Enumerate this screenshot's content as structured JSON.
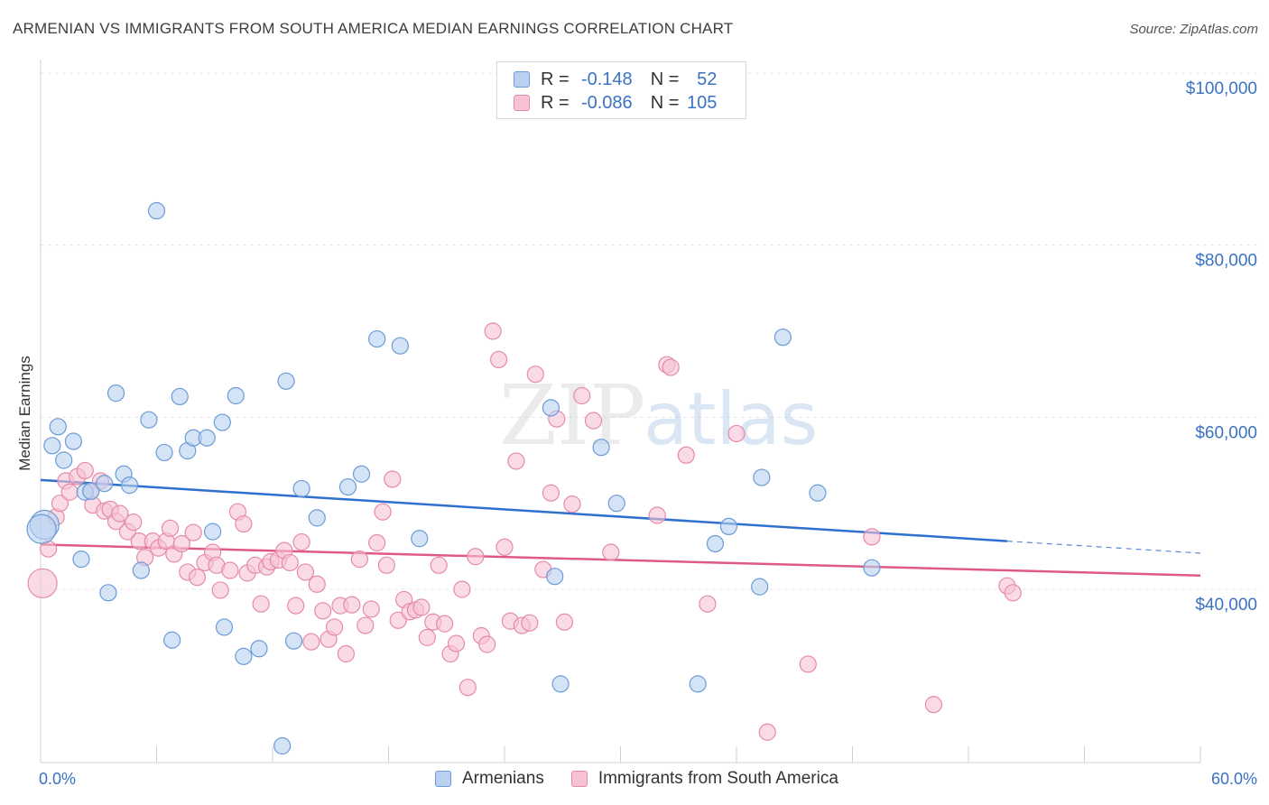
{
  "header": {
    "title": "ARMENIAN VS IMMIGRANTS FROM SOUTH AMERICA MEDIAN EARNINGS CORRELATION CHART",
    "source": "Source: ZipAtlas.com"
  },
  "watermark": {
    "zip": "ZIP",
    "atlas": "atlas"
  },
  "legend_top": {
    "r_label": "R =",
    "n_label": "N =",
    "rows": [
      {
        "r": "-0.148",
        "n": "52"
      },
      {
        "r": "-0.086",
        "n": "105"
      }
    ]
  },
  "legend_bottom": [
    {
      "label": "Armenians"
    },
    {
      "label": "Immigrants from South America"
    }
  ],
  "colors": {
    "blue_fill": "#b9d0f0",
    "blue_stroke": "#6a9bd8",
    "blue_line": "#2f6fce",
    "pink_fill": "#f7c3d3",
    "pink_stroke": "#e58aa9",
    "pink_line": "#e0588a",
    "tick_text": "#3a72c4"
  },
  "chart_data": {
    "type": "scatter",
    "title": "ARMENIAN VS IMMIGRANTS FROM SOUTH AMERICA MEDIAN EARNINGS CORRELATION CHART",
    "ylabel": "Median Earnings",
    "xlim": [
      0,
      60
    ],
    "ylim": [
      20000,
      105000
    ],
    "x_tick_labels": [
      "0.0%",
      "60.0%"
    ],
    "y_ticks": [
      40000,
      60000,
      80000,
      100000
    ],
    "y_tick_labels": [
      "$40,000",
      "$60,000",
      "$80,000",
      "$100,000"
    ],
    "grid": true,
    "legend_position": "top-center",
    "series": [
      {
        "name": "Armenians",
        "r": -0.148,
        "n": 52,
        "trend": {
          "x0": 0,
          "y0": 52700,
          "x1": 50,
          "y1": 45600,
          "dashed_to_x": 60,
          "dashed_to_y": 44200
        },
        "points": [
          [
            0.2,
            47500
          ],
          [
            0.6,
            56700
          ],
          [
            0.9,
            58900
          ],
          [
            1.2,
            55000
          ],
          [
            1.7,
            57200
          ],
          [
            2.1,
            43500
          ],
          [
            2.3,
            51300
          ],
          [
            2.6,
            51400
          ],
          [
            3.3,
            52300
          ],
          [
            3.5,
            39600
          ],
          [
            3.9,
            62800
          ],
          [
            4.3,
            53400
          ],
          [
            4.6,
            52100
          ],
          [
            5.2,
            42200
          ],
          [
            5.6,
            59700
          ],
          [
            6.0,
            84000
          ],
          [
            6.4,
            55900
          ],
          [
            6.8,
            34100
          ],
          [
            7.2,
            62400
          ],
          [
            7.6,
            56100
          ],
          [
            7.9,
            57600
          ],
          [
            8.6,
            57600
          ],
          [
            8.9,
            46700
          ],
          [
            9.4,
            59400
          ],
          [
            9.5,
            35600
          ],
          [
            10.1,
            62500
          ],
          [
            10.5,
            32200
          ],
          [
            11.3,
            33100
          ],
          [
            12.5,
            21800
          ],
          [
            12.7,
            64200
          ],
          [
            13.1,
            34000
          ],
          [
            13.5,
            51700
          ],
          [
            14.3,
            48300
          ],
          [
            15.9,
            51900
          ],
          [
            16.6,
            53400
          ],
          [
            17.4,
            69100
          ],
          [
            18.6,
            68300
          ],
          [
            19.6,
            45900
          ],
          [
            26.4,
            61100
          ],
          [
            26.6,
            41500
          ],
          [
            26.9,
            29000
          ],
          [
            29.0,
            56500
          ],
          [
            29.8,
            50000
          ],
          [
            34.0,
            29000
          ],
          [
            34.9,
            45300
          ],
          [
            35.6,
            47300
          ],
          [
            37.2,
            40300
          ],
          [
            37.3,
            53000
          ],
          [
            38.4,
            69300
          ],
          [
            40.2,
            51200
          ],
          [
            43.0,
            42500
          ],
          [
            0.05,
            47000
          ]
        ]
      },
      {
        "name": "Immigrants from South America",
        "r": -0.086,
        "n": 105,
        "trend": {
          "x0": 0,
          "y0": 45200,
          "x1": 60,
          "y1": 41600
        },
        "points": [
          [
            0.1,
            40700
          ],
          [
            0.4,
            44700
          ],
          [
            0.8,
            48400
          ],
          [
            1.0,
            50000
          ],
          [
            1.3,
            52600
          ],
          [
            1.5,
            51300
          ],
          [
            1.9,
            53100
          ],
          [
            2.3,
            53800
          ],
          [
            2.6,
            51400
          ],
          [
            2.7,
            49800
          ],
          [
            3.1,
            52600
          ],
          [
            3.3,
            49100
          ],
          [
            3.6,
            49300
          ],
          [
            3.9,
            47900
          ],
          [
            4.1,
            48800
          ],
          [
            4.5,
            46700
          ],
          [
            4.8,
            47800
          ],
          [
            5.1,
            45600
          ],
          [
            5.4,
            43700
          ],
          [
            5.8,
            45600
          ],
          [
            6.1,
            44800
          ],
          [
            6.5,
            45600
          ],
          [
            6.7,
            47100
          ],
          [
            6.9,
            44100
          ],
          [
            7.3,
            45300
          ],
          [
            7.6,
            42000
          ],
          [
            7.9,
            46600
          ],
          [
            8.1,
            41400
          ],
          [
            8.5,
            43100
          ],
          [
            8.9,
            44300
          ],
          [
            9.1,
            42800
          ],
          [
            9.3,
            39900
          ],
          [
            9.8,
            42200
          ],
          [
            10.2,
            49000
          ],
          [
            10.5,
            47600
          ],
          [
            10.7,
            41900
          ],
          [
            11.1,
            42800
          ],
          [
            11.4,
            38300
          ],
          [
            11.7,
            42600
          ],
          [
            11.9,
            43200
          ],
          [
            12.3,
            43400
          ],
          [
            12.6,
            44500
          ],
          [
            12.9,
            43100
          ],
          [
            13.2,
            38100
          ],
          [
            13.5,
            45500
          ],
          [
            13.7,
            42000
          ],
          [
            14.0,
            33900
          ],
          [
            14.3,
            40600
          ],
          [
            14.6,
            37500
          ],
          [
            14.9,
            34200
          ],
          [
            15.2,
            35600
          ],
          [
            15.5,
            38100
          ],
          [
            15.8,
            32500
          ],
          [
            16.1,
            38200
          ],
          [
            16.5,
            43500
          ],
          [
            16.8,
            35800
          ],
          [
            17.1,
            37700
          ],
          [
            17.4,
            45400
          ],
          [
            17.7,
            49000
          ],
          [
            17.9,
            42800
          ],
          [
            18.2,
            52800
          ],
          [
            18.5,
            36400
          ],
          [
            18.8,
            38800
          ],
          [
            19.1,
            37400
          ],
          [
            19.4,
            37600
          ],
          [
            19.7,
            37900
          ],
          [
            20.0,
            34400
          ],
          [
            20.3,
            36200
          ],
          [
            20.6,
            42800
          ],
          [
            20.9,
            36000
          ],
          [
            21.2,
            32500
          ],
          [
            21.5,
            33700
          ],
          [
            21.8,
            40000
          ],
          [
            22.1,
            28600
          ],
          [
            22.5,
            43800
          ],
          [
            22.8,
            34600
          ],
          [
            23.1,
            33600
          ],
          [
            23.4,
            70000
          ],
          [
            23.7,
            66700
          ],
          [
            24.0,
            44900
          ],
          [
            24.3,
            36300
          ],
          [
            24.6,
            54900
          ],
          [
            24.9,
            35800
          ],
          [
            25.3,
            36100
          ],
          [
            25.6,
            65000
          ],
          [
            26.0,
            42300
          ],
          [
            26.4,
            51200
          ],
          [
            26.7,
            59800
          ],
          [
            27.1,
            36200
          ],
          [
            27.5,
            49900
          ],
          [
            28.0,
            62500
          ],
          [
            28.6,
            59600
          ],
          [
            29.5,
            44300
          ],
          [
            31.9,
            48600
          ],
          [
            32.4,
            66100
          ],
          [
            32.6,
            65800
          ],
          [
            33.4,
            55600
          ],
          [
            34.5,
            38300
          ],
          [
            36.0,
            58100
          ],
          [
            37.6,
            23400
          ],
          [
            39.7,
            31300
          ],
          [
            43.0,
            46100
          ],
          [
            46.2,
            26600
          ],
          [
            50.0,
            40400
          ],
          [
            50.3,
            39600
          ]
        ]
      }
    ]
  }
}
